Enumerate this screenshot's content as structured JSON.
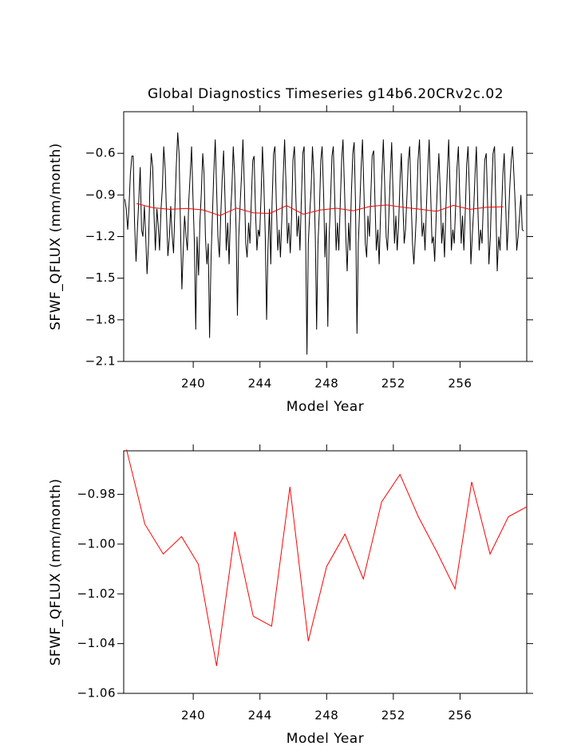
{
  "chart_data": [
    {
      "type": "line",
      "title": "Global Diagnostics Timeseries g14b6.20CRv2c.02",
      "xlabel": "Model Year",
      "ylabel": "SFWF_QFLUX (mm/month)",
      "xlim": [
        235.83,
        260.0
      ],
      "xticks": [
        240,
        244,
        248,
        252,
        256
      ],
      "ylim": [
        -2.1,
        -0.3
      ],
      "yticks": [
        {
          "value": -0.6,
          "label": "−0.6"
        },
        {
          "value": -0.9,
          "label": "−0.9"
        },
        {
          "value": -1.2,
          "label": "−1.2"
        },
        {
          "value": -1.5,
          "label": "−1.5"
        },
        {
          "value": -1.8,
          "label": "−1.8"
        },
        {
          "value": -2.1,
          "label": "−2.1"
        }
      ],
      "series": [
        {
          "color": "#000000",
          "x": [
            235.9,
            235.98,
            236.07,
            236.15,
            236.23,
            236.32,
            236.4,
            236.48,
            236.57,
            236.65,
            236.73,
            236.82,
            236.9,
            236.98,
            237.07,
            237.15,
            237.23,
            237.32,
            237.4,
            237.48,
            237.57,
            237.65,
            237.73,
            237.82,
            237.9,
            237.98,
            238.07,
            238.15,
            238.23,
            238.32,
            238.4,
            238.48,
            238.57,
            238.65,
            238.73,
            238.82,
            238.9,
            238.98,
            239.07,
            239.15,
            239.23,
            239.32,
            239.4,
            239.48,
            239.57,
            239.65,
            239.73,
            239.82,
            239.9,
            239.98,
            240.07,
            240.15,
            240.23,
            240.32,
            240.4,
            240.48,
            240.57,
            240.65,
            240.73,
            240.82,
            240.9,
            240.98,
            241.07,
            241.15,
            241.23,
            241.32,
            241.4,
            241.48,
            241.57,
            241.65,
            241.73,
            241.82,
            241.9,
            241.98,
            242.07,
            242.15,
            242.23,
            242.32,
            242.4,
            242.48,
            242.57,
            242.65,
            242.73,
            242.82,
            242.9,
            242.98,
            243.07,
            243.15,
            243.23,
            243.32,
            243.4,
            243.48,
            243.57,
            243.65,
            243.73,
            243.82,
            243.9,
            243.98,
            244.07,
            244.15,
            244.23,
            244.32,
            244.4,
            244.48,
            244.57,
            244.65,
            244.73,
            244.82,
            244.9,
            244.98,
            245.07,
            245.15,
            245.23,
            245.32,
            245.4,
            245.48,
            245.57,
            245.65,
            245.73,
            245.82,
            245.9,
            245.98,
            246.07,
            246.15,
            246.23,
            246.32,
            246.4,
            246.48,
            246.57,
            246.65,
            246.73,
            246.82,
            246.9,
            246.98,
            247.07,
            247.15,
            247.23,
            247.32,
            247.4,
            247.48,
            247.57,
            247.65,
            247.73,
            247.82,
            247.9,
            247.98,
            248.07,
            248.15,
            248.23,
            248.32,
            248.4,
            248.48,
            248.57,
            248.65,
            248.73,
            248.82,
            248.9,
            248.98,
            249.07,
            249.15,
            249.23,
            249.32,
            249.4,
            249.48,
            249.57,
            249.65,
            249.73,
            249.82,
            249.9,
            249.98,
            250.07,
            250.15,
            250.23,
            250.32,
            250.4,
            250.48,
            250.57,
            250.65,
            250.73,
            250.82,
            250.9,
            250.98,
            251.07,
            251.15,
            251.23,
            251.32,
            251.4,
            251.48,
            251.57,
            251.65,
            251.73,
            251.82,
            251.9,
            251.98,
            252.07,
            252.15,
            252.23,
            252.32,
            252.4,
            252.48,
            252.57,
            252.65,
            252.73,
            252.82,
            252.9,
            252.98,
            253.07,
            253.15,
            253.23,
            253.32,
            253.4,
            253.48,
            253.57,
            253.65,
            253.73,
            253.82,
            253.9,
            253.98,
            254.07,
            254.15,
            254.23,
            254.32,
            254.4,
            254.48,
            254.57,
            254.65,
            254.73,
            254.82,
            254.9,
            254.98,
            255.07,
            255.15,
            255.23,
            255.32,
            255.4,
            255.48,
            255.57,
            255.65,
            255.73,
            255.82,
            255.9,
            255.98,
            256.07,
            256.15,
            256.23,
            256.32,
            256.4,
            256.48,
            256.57,
            256.65,
            256.73,
            256.82,
            256.9,
            256.98,
            257.07,
            257.15,
            257.23,
            257.32,
            257.4,
            257.48,
            257.57,
            257.65,
            257.73,
            257.82,
            257.9,
            257.98,
            258.07,
            258.15,
            258.23,
            258.32,
            258.4,
            258.48,
            258.57,
            258.65,
            258.73,
            258.82,
            258.9,
            258.98,
            259.07,
            259.15,
            259.23,
            259.32,
            259.4,
            259.48,
            259.57,
            259.65,
            259.73,
            259.82
          ],
          "values": [
            -0.93,
            -1.0,
            -1.15,
            -0.98,
            -0.75,
            -0.62,
            -0.62,
            -1.1,
            -1.38,
            -1.15,
            -0.95,
            -0.7,
            -1.15,
            -1.2,
            -0.98,
            -1.2,
            -1.47,
            -1.25,
            -0.85,
            -0.6,
            -0.7,
            -1.05,
            -1.3,
            -1.0,
            -1.12,
            -1.3,
            -1.0,
            -0.85,
            -0.55,
            -0.72,
            -1.05,
            -1.34,
            -1.2,
            -0.98,
            -1.18,
            -1.32,
            -1.0,
            -0.7,
            -0.45,
            -0.6,
            -1.1,
            -1.58,
            -1.3,
            -1.05,
            -1.2,
            -1.3,
            -0.95,
            -0.75,
            -0.55,
            -0.9,
            -1.25,
            -1.87,
            -1.2,
            -1.48,
            -1.1,
            -0.9,
            -0.6,
            -0.75,
            -1.2,
            -1.4,
            -1.25,
            -1.93,
            -1.35,
            -1.05,
            -0.75,
            -0.5,
            -0.85,
            -1.2,
            -1.35,
            -1.05,
            -0.8,
            -0.58,
            -0.9,
            -1.3,
            -1.1,
            -1.4,
            -1.05,
            -0.85,
            -0.55,
            -0.75,
            -1.15,
            -1.77,
            -1.2,
            -0.95,
            -0.75,
            -0.5,
            -0.85,
            -1.25,
            -1.35,
            -1.1,
            -1.25,
            -0.95,
            -0.65,
            -0.62,
            -1.0,
            -1.3,
            -1.15,
            -1.2,
            -0.9,
            -0.55,
            -0.8,
            -1.2,
            -1.8,
            -1.3,
            -1.0,
            -1.4,
            -0.95,
            -0.6,
            -0.55,
            -0.95,
            -1.3,
            -1.15,
            -1.35,
            -1.05,
            -0.75,
            -0.5,
            -0.85,
            -1.25,
            -1.1,
            -1.32,
            -1.05,
            -0.65,
            -0.55,
            -0.9,
            -1.2,
            -1.05,
            -1.3,
            -0.95,
            -0.6,
            -0.55,
            -1.1,
            -2.05,
            -1.25,
            -1.05,
            -0.85,
            -0.55,
            -0.75,
            -1.2,
            -1.87,
            -1.25,
            -1.0,
            -0.65,
            -0.55,
            -0.9,
            -1.35,
            -1.1,
            -1.85,
            -1.2,
            -0.95,
            -0.62,
            -0.55,
            -0.9,
            -1.3,
            -1.1,
            -1.3,
            -0.95,
            -0.65,
            -0.5,
            -0.85,
            -1.2,
            -1.45,
            -1.1,
            -1.3,
            -0.9,
            -0.6,
            -0.52,
            -0.95,
            -1.9,
            -1.25,
            -1.0,
            -0.7,
            -0.5,
            -0.85,
            -1.25,
            -1.35,
            -1.05,
            -1.2,
            -0.9,
            -0.62,
            -0.58,
            -0.95,
            -1.3,
            -1.15,
            -1.4,
            -1.05,
            -0.75,
            -0.5,
            -0.82,
            -1.2,
            -1.3,
            -1.05,
            -0.75,
            -0.52,
            -0.88,
            -1.25,
            -1.05,
            -1.3,
            -1.1,
            -0.8,
            -0.6,
            -0.95,
            -1.25,
            -1.15,
            -0.9,
            -0.65,
            -0.55,
            -0.95,
            -1.25,
            -1.4,
            -1.2,
            -0.98,
            -0.65,
            -0.5,
            -0.9,
            -1.2,
            -1.1,
            -1.3,
            -1.0,
            -0.7,
            -0.5,
            -0.85,
            -1.25,
            -1.2,
            -1.38,
            -1.05,
            -0.8,
            -0.6,
            -0.9,
            -1.25,
            -1.1,
            -1.35,
            -1.0,
            -0.75,
            -0.5,
            -0.85,
            -1.3,
            -1.15,
            -1.25,
            -1.0,
            -0.7,
            -0.55,
            -0.9,
            -1.25,
            -1.05,
            -1.3,
            -1.0,
            -0.68,
            -0.55,
            -0.9,
            -1.4,
            -1.2,
            -1.0,
            -0.75,
            -0.55,
            -1.0,
            -1.3,
            -1.15,
            -1.25,
            -0.95,
            -0.65,
            -0.6,
            -0.95,
            -1.4,
            -1.2,
            -0.85,
            -0.6,
            -0.55,
            -1.0,
            -1.45,
            -1.2,
            -1.3,
            -1.05,
            -0.75,
            -0.6,
            -0.95,
            -1.3,
            -1.1,
            -0.85,
            -0.65,
            -0.55,
            -0.75,
            -1.0,
            -1.3,
            -1.2,
            -1.05,
            -0.9,
            -1.15,
            -1.16
          ]
        },
        {
          "color": "#ff0000",
          "x": [
            236.6,
            237.6,
            238.6,
            239.6,
            240.6,
            241.6,
            242.6,
            243.6,
            244.6,
            245.6,
            246.6,
            247.6,
            248.6,
            249.6,
            250.6,
            251.6,
            252.6,
            253.6,
            254.6,
            255.6,
            256.6,
            257.6,
            258.6
          ],
          "values": [
            -0.962,
            -0.992,
            -1.004,
            -0.997,
            -1.008,
            -1.049,
            -0.995,
            -1.029,
            -1.033,
            -0.977,
            -1.039,
            -1.009,
            -0.996,
            -1.014,
            -0.983,
            -0.972,
            -0.989,
            -1.003,
            -1.018,
            -0.975,
            -1.004,
            -0.989,
            -0.985
          ]
        }
      ]
    },
    {
      "type": "line",
      "xlabel": "Model Year",
      "ylabel": "SFWF_QFLUX (mm/month)",
      "xlim": [
        235.83,
        260.0
      ],
      "xticks": [
        240,
        244,
        248,
        252,
        256
      ],
      "ylim": [
        -1.06,
        -0.9625
      ],
      "yticks": [
        {
          "value": -0.98,
          "label": "−0.98"
        },
        {
          "value": -1.0,
          "label": "−1.00"
        },
        {
          "value": -1.02,
          "label": "−1.02"
        },
        {
          "value": -1.04,
          "label": "−1.04"
        },
        {
          "value": -1.06,
          "label": "−1.06"
        }
      ],
      "series": [
        {
          "color": "#ff0000",
          "x": [
            236.0,
            237.1,
            238.2,
            239.3,
            240.3,
            241.4,
            242.5,
            243.6,
            244.7,
            245.8,
            246.9,
            248.0,
            249.1,
            250.2,
            251.3,
            252.4,
            253.5,
            254.6,
            255.7,
            256.7,
            257.8,
            258.9,
            260.0
          ],
          "values": [
            -0.962,
            -0.992,
            -1.004,
            -0.997,
            -1.008,
            -1.049,
            -0.995,
            -1.029,
            -1.033,
            -0.977,
            -1.039,
            -1.009,
            -0.996,
            -1.014,
            -0.983,
            -0.972,
            -0.989,
            -1.003,
            -1.018,
            -0.975,
            -1.004,
            -0.989,
            -0.985
          ]
        }
      ]
    }
  ]
}
